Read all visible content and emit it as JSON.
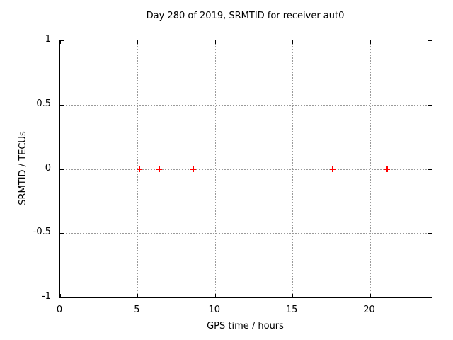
{
  "figure": {
    "background": "#ffffff",
    "text_color": "#000000"
  },
  "chart_data": {
    "type": "scatter",
    "title": "Day 280 of 2019, SRMTID for receiver aut0",
    "xlabel": "GPS time / hours",
    "ylabel": "SRMTID / TECUs",
    "xlim": [
      0,
      24
    ],
    "ylim": [
      -1,
      1
    ],
    "xticks": [
      {
        "v": 0,
        "label": "0"
      },
      {
        "v": 5,
        "label": "5"
      },
      {
        "v": 10,
        "label": "10"
      },
      {
        "v": 15,
        "label": "15"
      },
      {
        "v": 20,
        "label": "20"
      }
    ],
    "yticks": [
      {
        "v": 1,
        "label": "1"
      },
      {
        "v": 0.5,
        "label": "0.5"
      },
      {
        "v": 0,
        "label": "0"
      },
      {
        "v": -0.5,
        "label": "-0.5"
      },
      {
        "v": -1,
        "label": "-1"
      }
    ],
    "grid": true,
    "legend": "none",
    "border_color": "#000000",
    "grid_color": "#9a9a9a",
    "marker": {
      "shape": "plus",
      "color": "#ff0000"
    },
    "series": [
      {
        "name": "SRMTID",
        "marker": "plus",
        "color": "#ff0000",
        "points": [
          [
            5.1,
            0
          ],
          [
            6.4,
            0
          ],
          [
            8.6,
            0
          ],
          [
            17.6,
            0
          ],
          [
            21.1,
            0
          ]
        ]
      }
    ]
  }
}
